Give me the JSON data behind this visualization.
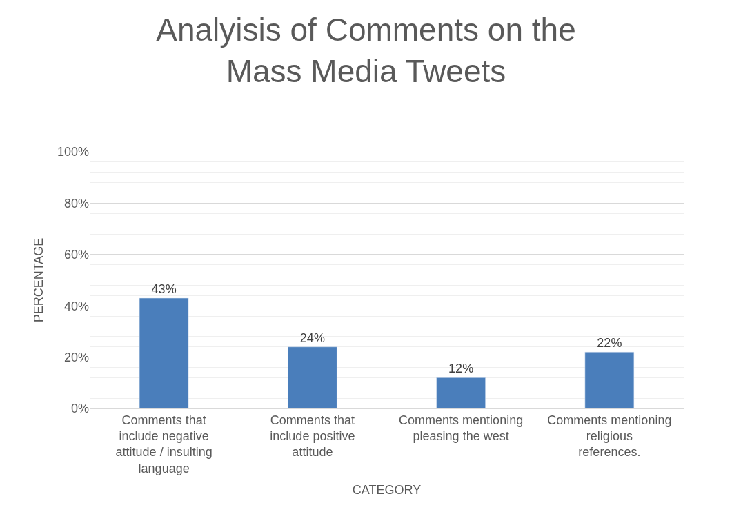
{
  "chart_data": {
    "type": "bar",
    "title": "Analyisis of Comments on the Mass Media Tweets",
    "xlabel": "CATEGORY",
    "ylabel": "PERCENTAGE",
    "categories": [
      "Comments that include negative attitude / insulting language",
      "Comments that include positive attitude",
      "Comments mentioning pleasing the west",
      "Comments mentioning religious references."
    ],
    "values": [
      43,
      24,
      12,
      22
    ],
    "value_labels": [
      "43%",
      "24%",
      "12%",
      "22%"
    ],
    "color": "#4a7ebb",
    "ylim": [
      0,
      100
    ],
    "yticks": [
      {
        "value": 0,
        "label": "0%"
      },
      {
        "value": 20,
        "label": "20%"
      },
      {
        "value": 40,
        "label": "40%"
      },
      {
        "value": 60,
        "label": "60%"
      },
      {
        "value": 80,
        "label": "80%"
      },
      {
        "value": 100,
        "label": "100%"
      }
    ],
    "grid": "y"
  }
}
